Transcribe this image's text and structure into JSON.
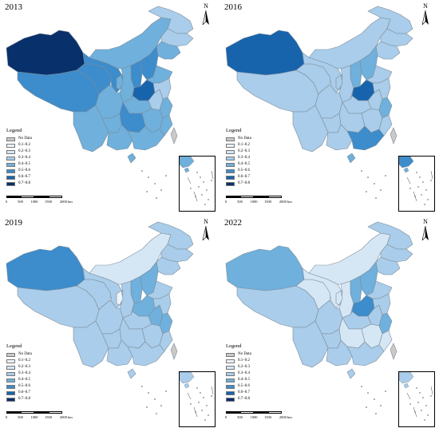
{
  "colors": {
    "no_data": "#c9c9c9",
    "c1": "#eef4fb",
    "c2": "#d5e6f5",
    "c3": "#a9cdea",
    "c4": "#6fb0dc",
    "c5": "#3d8ccb",
    "c6": "#1764ad",
    "c7": "#08306b",
    "border": "#7f8c99"
  },
  "north_label": "N",
  "legend": {
    "title": "Legend",
    "items": [
      "No Data",
      "0.1–0.2",
      "0.2–0.3",
      "0.3–0.4",
      "0.4–0.5",
      "0.5–0.6",
      "0.6–0.7",
      "0.7–0.8"
    ]
  },
  "scale": {
    "ticks": [
      "0",
      "500",
      "1000",
      "1500",
      "2000 km"
    ]
  },
  "panels": [
    {
      "year": "2013",
      "regions": {
        "xinjiang": 7,
        "tibet": 5,
        "qinghai": 5,
        "gansu": 5,
        "inner_mongolia": 4,
        "heilongjiang": 3,
        "jilin": 3,
        "liaoning": 4,
        "sichuan": 4,
        "yunnan": 4,
        "shaanxi": 4,
        "shanxi": 5,
        "hebei": 5,
        "henan": 6,
        "shandong": 4,
        "hubei": 4,
        "hunan": 5,
        "guangxi": 4,
        "guangdong": 4,
        "jiangxi": 4,
        "fujian": 4,
        "zhejiang": 4,
        "jiangsu": 3,
        "anhui": 3,
        "guizhou": 4,
        "ningxia": 4,
        "hainan": 4,
        "taiwan": 0
      }
    },
    {
      "year": "2016",
      "regions": {
        "xinjiang": 6,
        "tibet": 3,
        "qinghai": 3,
        "gansu": 3,
        "inner_mongolia": 3,
        "heilongjiang": 3,
        "jilin": 3,
        "liaoning": 3,
        "sichuan": 3,
        "yunnan": 3,
        "shaanxi": 3,
        "shanxi": 4,
        "hebei": 4,
        "henan": 6,
        "shandong": 3,
        "hubei": 3,
        "hunan": 3,
        "guangxi": 3,
        "guangdong": 5,
        "jiangxi": 3,
        "fujian": 3,
        "zhejiang": 4,
        "jiangsu": 3,
        "anhui": 3,
        "guizhou": 3,
        "ningxia": 3,
        "hainan": 4,
        "taiwan": 0
      }
    },
    {
      "year": "2019",
      "regions": {
        "xinjiang": 5,
        "tibet": 3,
        "qinghai": 3,
        "gansu": 3,
        "inner_mongolia": 2,
        "heilongjiang": 3,
        "jilin": 3,
        "liaoning": 3,
        "sichuan": 3,
        "yunnan": 3,
        "shaanxi": 3,
        "shanxi": 4,
        "hebei": 4,
        "henan": 4,
        "shandong": 3,
        "hubei": 3,
        "hunan": 3,
        "guangxi": 3,
        "guangdong": 3,
        "jiangxi": 3,
        "fujian": 3,
        "zhejiang": 4,
        "jiangsu": 3,
        "anhui": 4,
        "guizhou": 3,
        "ningxia": 1,
        "hainan": 3,
        "taiwan": 0
      }
    },
    {
      "year": "2022",
      "regions": {
        "xinjiang": 4,
        "tibet": 3,
        "qinghai": 2,
        "gansu": 2,
        "inner_mongolia": 2,
        "heilongjiang": 3,
        "jilin": 3,
        "liaoning": 3,
        "sichuan": 3,
        "yunnan": 3,
        "shaanxi": 2,
        "shanxi": 4,
        "hebei": 4,
        "henan": 5,
        "shandong": 3,
        "hubei": 3,
        "hunan": 2,
        "guangxi": 3,
        "guangdong": 3,
        "jiangxi": 2,
        "fujian": 2,
        "zhejiang": 4,
        "jiangsu": 3,
        "anhui": 3,
        "guizhou": 3,
        "ningxia": 2,
        "hainan": 3,
        "taiwan": 0
      }
    }
  ]
}
